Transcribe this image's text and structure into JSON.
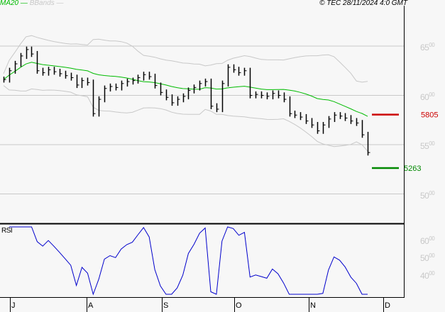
{
  "header": {
    "legend_ma": "MA20",
    "legend_bb": "BBands",
    "copyright": "© TEC 28/11/2024 4:0 GMT"
  },
  "chart_data": {
    "type": "ohlc",
    "price_axis": {
      "ticks": [
        {
          "main": "65",
          "sup": "00",
          "value": 6500
        },
        {
          "main": "60",
          "sup": "00",
          "value": 6000
        },
        {
          "main": "55",
          "sup": "00",
          "value": 5500
        },
        {
          "main": "50",
          "sup": "00",
          "value": 5000
        }
      ],
      "range": [
        4700,
        6850
      ]
    },
    "rsi_axis": {
      "label": "RSI",
      "ticks": [
        {
          "main": "60",
          "sup": "00",
          "value": 60
        },
        {
          "main": "50",
          "sup": "00",
          "value": 50
        },
        {
          "main": "40",
          "sup": "00",
          "value": 40
        }
      ]
    },
    "months": [
      "J",
      "A",
      "S",
      "O",
      "N",
      "D"
    ],
    "closes": [
      6160,
      6250,
      6320,
      6400,
      6465,
      6420,
      6250,
      6230,
      6260,
      6240,
      6220,
      6200,
      6180,
      6105,
      6150,
      6130,
      5815,
      5960,
      6070,
      6090,
      6080,
      6120,
      6140,
      6150,
      6180,
      6210,
      6190,
      6100,
      6030,
      5980,
      5925,
      5960,
      5990,
      6050,
      6080,
      6120,
      6140,
      5890,
      5860,
      6120,
      6285,
      6260,
      6230,
      6250,
      6000,
      6010,
      6000,
      5990,
      6020,
      6000,
      5960,
      5815,
      5800,
      5780,
      5740,
      5700,
      5640,
      5700,
      5760,
      5800,
      5790,
      5770,
      5740,
      5720,
      5600,
      5420
    ],
    "resistance": {
      "value": 5805,
      "label": "5805",
      "color": "#cc0000"
    },
    "support": {
      "value": 5263,
      "label": "5263",
      "color": "#008800"
    },
    "colors": {
      "ma": "#00bb00",
      "bb": "#c8c8c8",
      "rsi": "#0000cc",
      "bars": "#000000"
    }
  }
}
